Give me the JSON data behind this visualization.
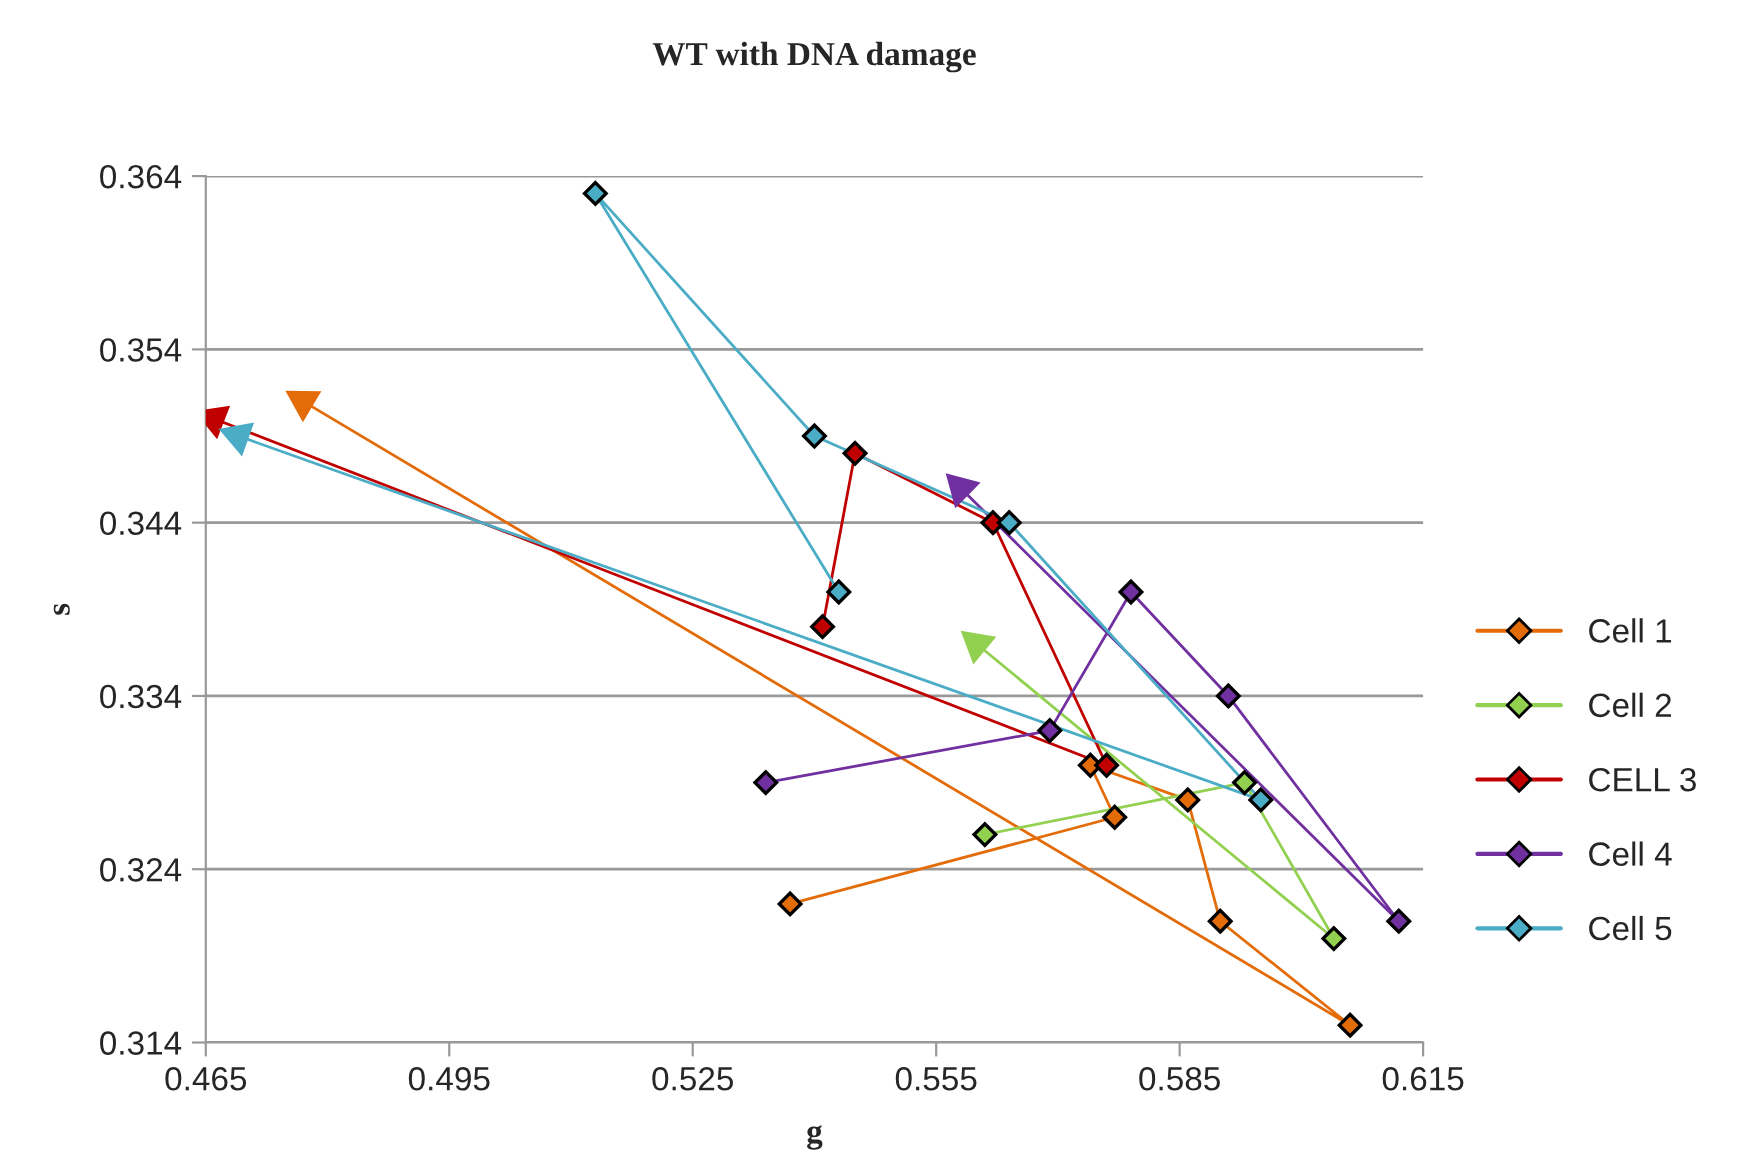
{
  "chart_data": {
    "type": "line",
    "title": "WT with DNA damage",
    "xlabel": "g",
    "ylabel": "s",
    "xlim": [
      0.465,
      0.615
    ],
    "xticks": [
      0.465,
      0.495,
      0.525,
      0.555,
      0.585,
      0.615
    ],
    "ylim": [
      0.314,
      0.364
    ],
    "yticks": [
      0.314,
      0.324,
      0.334,
      0.344,
      0.354,
      0.364
    ],
    "grid": "y",
    "legend": "right",
    "marker": "diamond",
    "line_style": "solid",
    "series": [
      {
        "name": "Cell 1",
        "color": "#e36c09",
        "x": [
          0.537,
          0.577,
          0.574,
          0.586,
          0.59,
          0.606,
          0.477
        ],
        "values": [
          0.322,
          0.327,
          0.33,
          0.328,
          0.321,
          0.315,
          0.351
        ]
      },
      {
        "name": "Cell 2",
        "color": "#92d050",
        "x": [
          0.561,
          0.593,
          0.604,
          0.56
        ],
        "values": [
          0.326,
          0.329,
          0.32,
          0.337
        ]
      },
      {
        "name": "CELL 3",
        "color": "#c00000",
        "x": [
          0.541,
          0.545,
          0.562,
          0.576,
          0.466
        ],
        "values": [
          0.338,
          0.348,
          0.344,
          0.33,
          0.35
        ]
      },
      {
        "name": "Cell 4",
        "color": "#7030a0",
        "x": [
          0.534,
          0.569,
          0.579,
          0.591,
          0.612,
          0.558
        ],
        "values": [
          0.329,
          0.332,
          0.34,
          0.334,
          0.321,
          0.346
        ]
      },
      {
        "name": "Cell 5",
        "color": "#4bacc6",
        "x": [
          0.543,
          0.513,
          0.54,
          0.564,
          0.595,
          0.469
        ],
        "values": [
          0.34,
          0.363,
          0.349,
          0.344,
          0.328,
          0.349
        ]
      }
    ]
  }
}
